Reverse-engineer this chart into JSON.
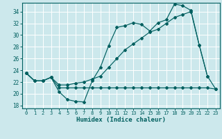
{
  "xlabel": "Humidex (Indice chaleur)",
  "bg_color": "#cce8ec",
  "grid_color": "#b0d4d8",
  "line_color": "#005f5f",
  "xlim": [
    -0.5,
    23.5
  ],
  "ylim": [
    17.5,
    35.5
  ],
  "xticks": [
    0,
    1,
    2,
    3,
    4,
    5,
    6,
    7,
    8,
    9,
    10,
    11,
    12,
    13,
    14,
    15,
    16,
    17,
    18,
    19,
    20,
    21,
    22,
    23
  ],
  "yticks": [
    18,
    20,
    22,
    24,
    26,
    28,
    30,
    32,
    34
  ],
  "series1": {
    "x": [
      0,
      1,
      2,
      3,
      4,
      5,
      6,
      7,
      8,
      9,
      10,
      11,
      12,
      13,
      14,
      15,
      16,
      17,
      18,
      19,
      20,
      21,
      22
    ],
    "y": [
      23.5,
      22.2,
      22.2,
      22.8,
      20.3,
      19.0,
      18.7,
      18.6,
      22.2,
      24.5,
      28.2,
      31.3,
      31.6,
      32.1,
      31.8,
      30.7,
      32.1,
      32.6,
      35.3,
      35.0,
      34.2,
      28.3,
      23.0
    ]
  },
  "series2": {
    "x": [
      0,
      1,
      2,
      3,
      4,
      5,
      6,
      7,
      8,
      9,
      10,
      11,
      12,
      13,
      14,
      15,
      16,
      17,
      18,
      19,
      20,
      21,
      22,
      23
    ],
    "y": [
      23.5,
      22.2,
      22.2,
      22.8,
      21.0,
      21.0,
      21.0,
      21.0,
      21.0,
      21.0,
      21.0,
      21.0,
      21.0,
      21.0,
      21.0,
      21.0,
      21.0,
      21.0,
      21.0,
      21.0,
      21.0,
      21.0,
      21.0,
      20.8
    ]
  },
  "series3": {
    "x": [
      0,
      1,
      2,
      3,
      4,
      5,
      6,
      7,
      8,
      9,
      10,
      11,
      12,
      13,
      14,
      15,
      16,
      17,
      18,
      19,
      20,
      21,
      22,
      23
    ],
    "y": [
      23.5,
      22.2,
      22.2,
      22.8,
      21.5,
      21.5,
      21.8,
      22.0,
      22.5,
      23.0,
      24.5,
      26.0,
      27.5,
      28.5,
      29.5,
      30.5,
      31.0,
      32.0,
      33.0,
      33.5,
      34.0,
      28.3,
      23.0,
      20.8
    ]
  }
}
